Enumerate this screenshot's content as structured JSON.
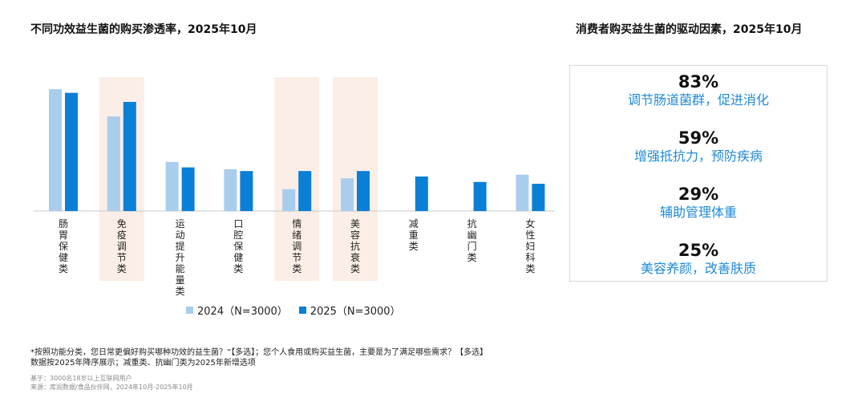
{
  "left_title": "不同功效益生菌的购买渗透率，2025年10月",
  "right_title": "消费者购买益生菌的驱动因素，2025年10月",
  "colors": {
    "series_2024": "#a9cdec",
    "series_2025": "#0a7fd6",
    "highlight": "#fbeee6",
    "driver_label": "#1f8ad6"
  },
  "chart_data": {
    "type": "bar",
    "categories": [
      "肠胃保健类",
      "免疫调节类",
      "运动提升能量类",
      "口腔保健类",
      "情绪调节类",
      "美容抗衰类",
      "减重类",
      "抗幽门类",
      "女性妇科类"
    ],
    "highlighted": [
      "免疫调节类",
      "情绪调节类",
      "美容抗衰类"
    ],
    "series": [
      {
        "name": "2024（N=3000）",
        "values": [
          67,
          52,
          27,
          23,
          12,
          18,
          null,
          null,
          20
        ]
      },
      {
        "name": "2025（N=3000）",
        "values": [
          65,
          60,
          24,
          22,
          22,
          22,
          19,
          16,
          15
        ]
      }
    ],
    "ylim": [
      0,
      75
    ],
    "grid": false,
    "legend_position": "bottom"
  },
  "legend": [
    {
      "label": "2024（N=3000）"
    },
    {
      "label": "2025（N=3000）"
    }
  ],
  "drivers": [
    {
      "pct": "83%",
      "label": "调节肠道菌群，促进消化"
    },
    {
      "pct": "59%",
      "label": "增强抵抗力，预防疾病"
    },
    {
      "pct": "29%",
      "label": "辅助管理体重"
    },
    {
      "pct": "25%",
      "label": "美容养颜，改善肤质"
    }
  ],
  "notes": {
    "line1": "*按照功能分类，您日常更偏好购买哪种功效的益生菌？”【多选】；您个人食用或购买益生菌，主要是为了满足哪些需求？【多选】",
    "line2": "数据按2025年降序展示；减重类、抗幽门类为2025年新增选项",
    "base": "基于：3000名18岁以上互联网用户",
    "source": "来源：库润数据/食品伙伴网，2024年10月-2025年10月"
  }
}
